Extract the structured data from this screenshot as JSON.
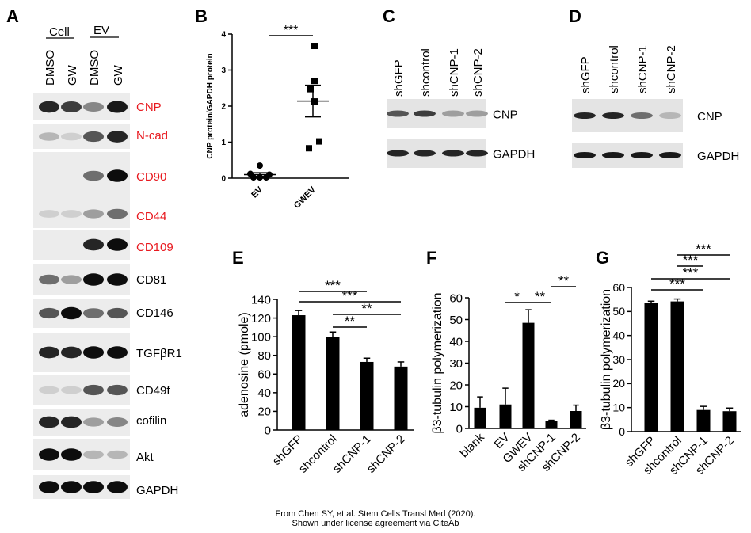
{
  "panel_letters": {
    "A": "A",
    "B": "B",
    "C": "C",
    "D": "D",
    "E": "E",
    "F": "F",
    "G": "G"
  },
  "caption": [
    "From Chen SY, et al. Stem Cells Transl Med (2020).",
    "Shown under license agreement via CiteAb"
  ],
  "colors": {
    "red_label": "#e8191f",
    "ink": "#000000",
    "blot_bg": "#e6e6e6"
  },
  "panel_a": {
    "groups": [
      "Cell",
      "EV"
    ],
    "lanes": [
      "DMSO",
      "GW",
      "DMSO",
      "GW"
    ],
    "rows": [
      {
        "label": "CNP",
        "red": true,
        "bands": [
          0.9,
          0.8,
          0.5,
          0.95
        ]
      },
      {
        "label": "N-cad",
        "red": true,
        "bands": [
          0.3,
          0.2,
          0.7,
          0.9
        ]
      },
      {
        "label": "CD90",
        "red": true,
        "bands": [
          0,
          0,
          0.6,
          1
        ]
      },
      {
        "label": "CD44",
        "red": true,
        "bands": [
          0.2,
          0.2,
          0.4,
          0.6
        ]
      },
      {
        "label": "CD109",
        "red": true,
        "bands": [
          0,
          0,
          0.9,
          1
        ]
      },
      {
        "label": "CD81",
        "red": false,
        "bands": [
          0.6,
          0.4,
          1,
          1
        ]
      },
      {
        "label": "CD146",
        "red": false,
        "bands": [
          0.7,
          1,
          0.6,
          0.7
        ]
      },
      {
        "label": "TGFβR1",
        "red": false,
        "bands": [
          0.9,
          0.9,
          1,
          1
        ]
      },
      {
        "label": "CD49f",
        "red": false,
        "bands": [
          0.2,
          0.2,
          0.7,
          0.7
        ]
      },
      {
        "label": "cofilin",
        "red": false,
        "bands": [
          0.9,
          0.9,
          0.4,
          0.5
        ]
      },
      {
        "label": "Akt",
        "red": false,
        "bands": [
          1,
          1,
          0.3,
          0.3
        ]
      },
      {
        "label": "GAPDH",
        "red": false,
        "bands": [
          1,
          1,
          1,
          1
        ]
      }
    ]
  },
  "panel_c": {
    "lanes": [
      "shGFP",
      "shcontrol",
      "shCNP-1",
      "shCNP-2"
    ],
    "rows": [
      {
        "label": "CNP",
        "bands": [
          0.7,
          0.8,
          0.4,
          0.4
        ]
      },
      {
        "label": "GAPDH",
        "bands": [
          0.9,
          0.9,
          0.9,
          0.9
        ]
      }
    ]
  },
  "panel_d": {
    "lanes": [
      "shGFP",
      "shcontrol",
      "shCNP-1",
      "shCNP-2"
    ],
    "rows": [
      {
        "label": "CNP",
        "bands": [
          0.9,
          0.9,
          0.6,
          0.3
        ]
      },
      {
        "label": "GAPDH",
        "bands": [
          0.95,
          0.95,
          0.95,
          0.95
        ]
      }
    ]
  },
  "chart_data": [
    {
      "panel": "B",
      "type": "scatter",
      "ylabel": "CNP protein/GAPDH protein",
      "ylim": [
        0,
        4
      ],
      "yticks": [
        "0",
        "1",
        "2",
        "3",
        "4"
      ],
      "categories": [
        "EV",
        "GWEV"
      ],
      "points": [
        [
          0.35,
          0.12,
          0.1,
          0.02,
          0.02,
          0.02
        ],
        [
          3.67,
          2.7,
          2.47,
          2.13,
          1.02,
          0.83
        ]
      ],
      "mean": [
        0.1,
        2.14
      ],
      "sem": [
        0.05,
        0.44
      ],
      "significance": [
        {
          "from": 0,
          "to": 1,
          "label": "***"
        }
      ]
    },
    {
      "panel": "E",
      "type": "bar",
      "ylabel": "adenosine (pmole)",
      "ylim": [
        0,
        140
      ],
      "yticks": [
        "0",
        "20",
        "40",
        "60",
        "80",
        "100",
        "120",
        "140"
      ],
      "categories": [
        "shGFP",
        "shcontrol",
        "shCNP-1",
        "shCNP-2"
      ],
      "values": [
        123,
        100,
        73,
        68
      ],
      "errors": [
        5,
        5,
        4,
        5
      ],
      "significance": [
        {
          "from": 0,
          "to": 2,
          "label": "***"
        },
        {
          "from": 0,
          "to": 3,
          "label": "***"
        },
        {
          "from": 1,
          "to": 3,
          "label": "**"
        },
        {
          "from": 1,
          "to": 2,
          "label": "**"
        }
      ]
    },
    {
      "panel": "F",
      "type": "bar",
      "ylabel": "β3-tubulin polymerization",
      "ylim": [
        0,
        60
      ],
      "yticks": [
        "0",
        "10",
        "20",
        "30",
        "40",
        "50",
        "60"
      ],
      "categories": [
        "blank",
        "EV",
        "GWEV",
        "shCNP-1",
        "shCNP-2"
      ],
      "values": [
        9.5,
        11,
        48.5,
        3.3,
        8
      ],
      "errors": [
        5,
        7.5,
        6,
        0.5,
        2.7
      ],
      "significance": [
        {
          "from": 3,
          "to": 4,
          "label": "**"
        },
        {
          "from": 1,
          "to": 2,
          "label": "*"
        },
        {
          "from": 2,
          "to": 3,
          "label": "**"
        }
      ]
    },
    {
      "panel": "G",
      "type": "bar",
      "ylabel": "β3-tubulin polymerization",
      "ylim": [
        0,
        60
      ],
      "yticks": [
        "0",
        "10",
        "20",
        "30",
        "40",
        "50",
        "60"
      ],
      "categories": [
        "shGFP",
        "shcontrol",
        "shCNP-1",
        "shCNP-2"
      ],
      "values": [
        53.5,
        54.2,
        9,
        8.5
      ],
      "errors": [
        0.8,
        1,
        1.5,
        1.3
      ],
      "significance": [
        {
          "from": 1,
          "to": 3,
          "label": "***"
        },
        {
          "from": 1,
          "to": 2,
          "label": "***"
        },
        {
          "from": 0,
          "to": 3,
          "label": "***"
        },
        {
          "from": 0,
          "to": 2,
          "label": "***"
        }
      ]
    }
  ]
}
